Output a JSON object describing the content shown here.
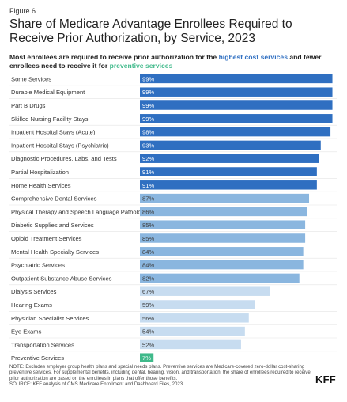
{
  "figure_label": "Figure 6",
  "title": "Share of Medicare Advantage Enrollees Required to Receive Prior Authorization, by Service, 2023",
  "subtitle": {
    "part1": "Most enrollees are required to receive prior authorization for the ",
    "highlight_cost": "highest cost services",
    "part2": " and fewer enrollees need to receive it for ",
    "highlight_preventive": "preventive services"
  },
  "colors": {
    "high": "#2f6fc1",
    "mid": "#8ab6df",
    "low": "#c7dcf0",
    "preventive": "#3fb98a",
    "row_line": "#e3e3e3",
    "label_on_dark": "#ffffff",
    "label_on_light": "#3b3b3b"
  },
  "chart_data": {
    "type": "bar",
    "orientation": "horizontal",
    "unit": "%",
    "xlim": [
      0,
      100
    ],
    "grid": false,
    "categories": [
      "Some Services",
      "Durable Medical Equipment",
      "Part B Drugs",
      "Skilled Nursing Facility Stays",
      "Inpatient Hospital Stays (Acute)",
      "Inpatient Hospital Stays (Psychiatric)",
      "Diagnostic Procedures, Labs, and Tests",
      "Partial Hospitalization",
      "Home Health Services",
      "Comprehensive Dental Services",
      "Physical Therapy and Speech Language Pathology",
      "Diabetic Supplies and Services",
      "Opioid Treatment Services",
      "Mental Health Specialty Services",
      "Psychiatric Services",
      "Outpatient Substance Abuse Services",
      "Dialysis Services",
      "Hearing Exams",
      "Physician Specialist Services",
      "Eye Exams",
      "Transportation Services",
      "Preventive Services"
    ],
    "values": [
      99,
      99,
      99,
      99,
      98,
      93,
      92,
      91,
      91,
      87,
      86,
      85,
      85,
      84,
      84,
      82,
      67,
      59,
      56,
      54,
      52,
      7
    ],
    "groups": [
      "high",
      "high",
      "high",
      "high",
      "high",
      "high",
      "high",
      "high",
      "high",
      "mid",
      "mid",
      "mid",
      "mid",
      "mid",
      "mid",
      "mid",
      "low",
      "low",
      "low",
      "low",
      "low",
      "preventive"
    ]
  },
  "notes": {
    "note": "NOTE: Excludes employer group health plans and special needs plans. Preventive services are Medicare-covered zero-dollar cost-sharing preventive services. For supplemental benefits, including dental, hearing, vision, and transportation, the share of enrollees required to receive prior authorization are based on the enrollees in plans that offer those benefits.",
    "source": "SOURCE: KFF analysis of CMS Medicare Enrollment and Dashboard Files, 2023."
  },
  "logo": "KFF"
}
